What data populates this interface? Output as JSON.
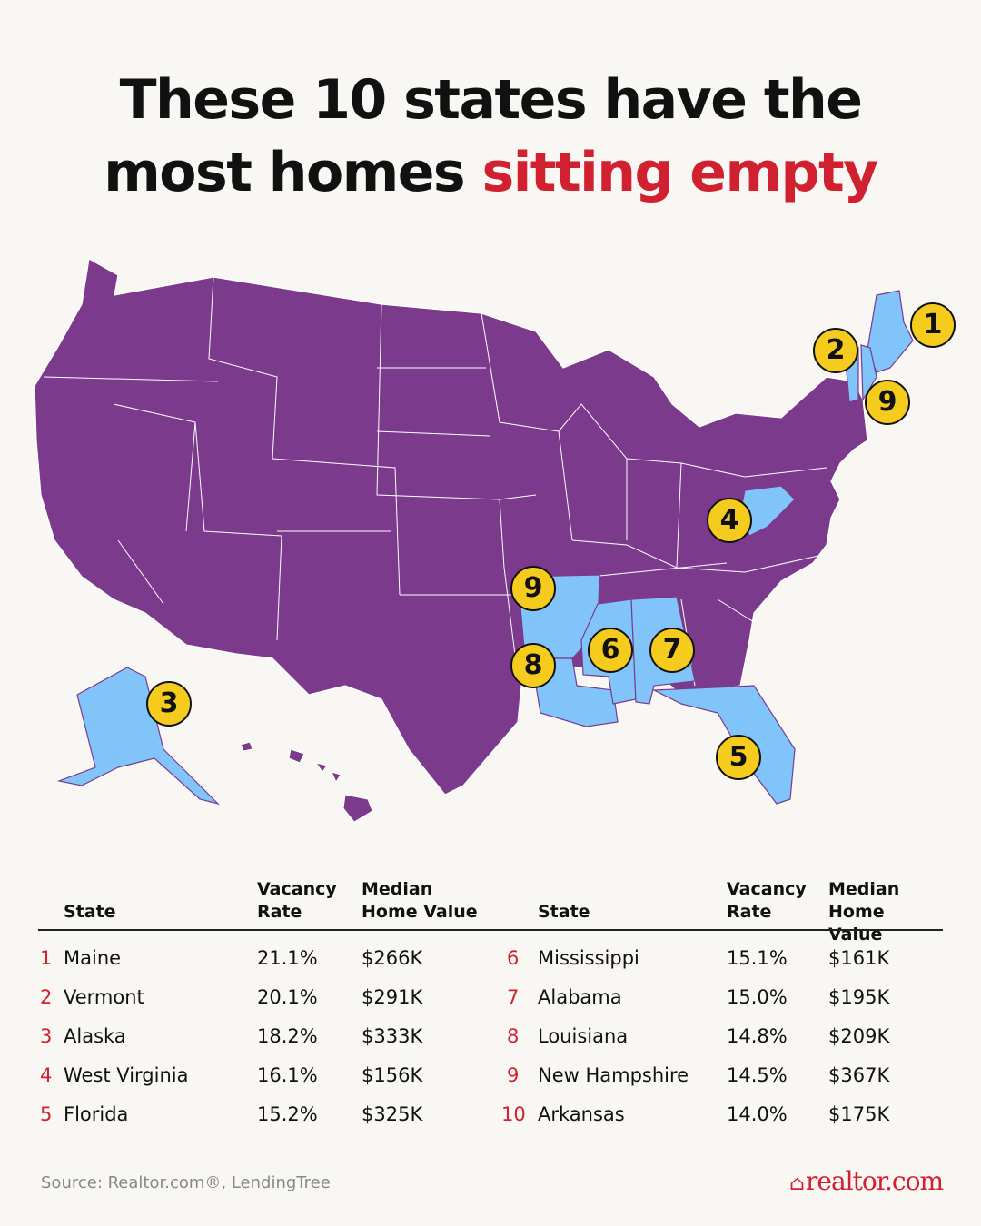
{
  "title": {
    "line1": "These 10 states have the",
    "line2_prefix": "most homes",
    "line2_accent": "sitting empty"
  },
  "colors": {
    "accent": "#d1202f",
    "state_default": "#7b3a8c",
    "state_highlight": "#80c4fa",
    "badge": "#f5cc1e"
  },
  "map_badges": [
    "1",
    "2",
    "9",
    "4",
    "9",
    "8",
    "6",
    "7",
    "3",
    "5"
  ],
  "table": {
    "headers": {
      "state": "State",
      "vacancy": [
        "Vacancy",
        "Rate"
      ],
      "median": [
        "Median",
        "Home Value"
      ]
    },
    "rows": [
      {
        "rank": "1",
        "state": "Maine",
        "vacancy": "21.1%",
        "median": "$266K"
      },
      {
        "rank": "2",
        "state": "Vermont",
        "vacancy": "20.1%",
        "median": "$291K"
      },
      {
        "rank": "3",
        "state": "Alaska",
        "vacancy": "18.2%",
        "median": "$333K"
      },
      {
        "rank": "4",
        "state": "West Virginia",
        "vacancy": "16.1%",
        "median": "$156K"
      },
      {
        "rank": "5",
        "state": "Florida",
        "vacancy": "15.2%",
        "median": "$325K"
      },
      {
        "rank": "6",
        "state": "Mississippi",
        "vacancy": "15.1%",
        "median": "$161K"
      },
      {
        "rank": "7",
        "state": "Alabama",
        "vacancy": "15.0%",
        "median": "$195K"
      },
      {
        "rank": "8",
        "state": "Louisiana",
        "vacancy": "14.8%",
        "median": "$209K"
      },
      {
        "rank": "9",
        "state": "New Hampshire",
        "vacancy": "14.5%",
        "median": "$367K"
      },
      {
        "rank": "10",
        "state": "Arkansas",
        "vacancy": "14.0%",
        "median": "$175K"
      }
    ]
  },
  "source": "Source: Realtor.com®, LendingTree",
  "logo": "realtor.com"
}
